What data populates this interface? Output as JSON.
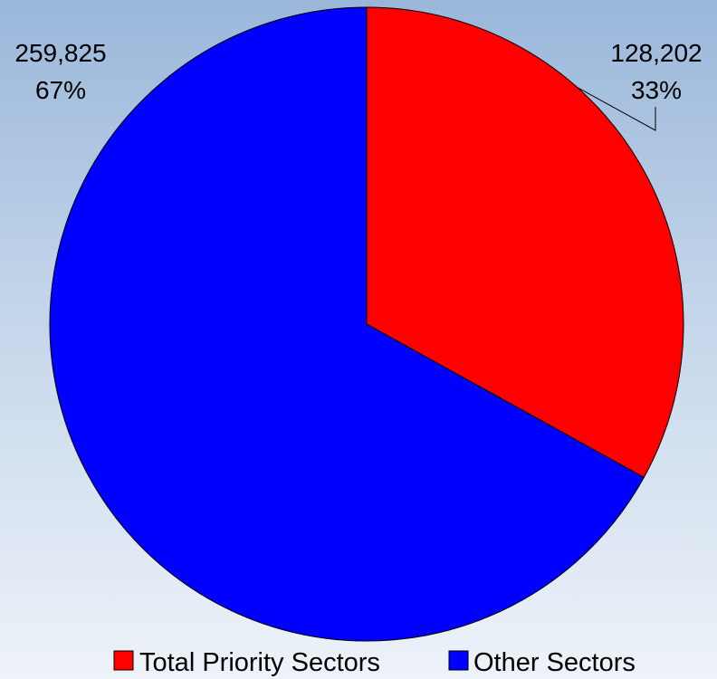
{
  "chart_data": {
    "type": "pie",
    "title": "",
    "series": [
      {
        "name": "Total Priority Sectors",
        "value": 128202,
        "value_label": "128,202",
        "percent_label": "33%",
        "color": "#ff0000"
      },
      {
        "name": "Other Sectors",
        "value": 259825,
        "value_label": "259,825",
        "percent_label": "67%",
        "color": "#0000ff"
      }
    ],
    "legend_position": "bottom",
    "start_angle": "12 o'clock",
    "direction": "clockwise",
    "border_color": "#000000"
  }
}
